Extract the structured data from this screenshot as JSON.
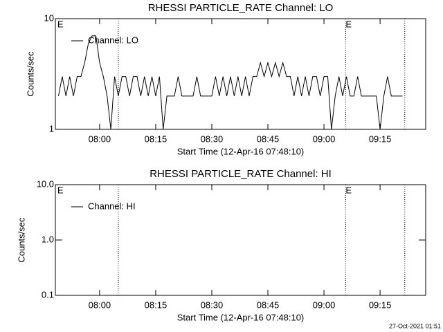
{
  "chart_data": [
    {
      "type": "line",
      "title": "RHESSI PARTICLE_RATE Channel: LO",
      "xlabel": "Start Time (12-Apr-16 07:48:10)",
      "ylabel": "Counts/sec",
      "log_y": true,
      "ylim": [
        1,
        10
      ],
      "yticks": [
        1,
        10
      ],
      "xlim": [
        468.17,
        567.2
      ],
      "xticks": [
        {
          "value": 480,
          "label": "08:00"
        },
        {
          "value": 495,
          "label": "08:15"
        },
        {
          "value": 510,
          "label": "08:30"
        },
        {
          "value": 525,
          "label": "08:45"
        },
        {
          "value": 540,
          "label": "09:00"
        },
        {
          "value": 555,
          "label": "09:15"
        }
      ],
      "vlines": [
        485.0,
        545.8,
        561.6
      ],
      "annotations": [
        {
          "text": "E",
          "x": 468.7
        },
        {
          "text": "E",
          "x": 545.8
        }
      ],
      "legend": "upper left",
      "x": [
        469,
        470,
        471,
        472,
        473,
        474,
        475,
        476,
        477,
        478,
        479,
        480,
        481,
        482,
        483,
        484,
        485,
        486,
        487,
        488,
        489,
        490,
        491,
        492,
        493,
        494,
        495,
        496,
        497,
        498,
        499,
        500,
        501,
        502,
        503,
        504,
        505,
        506,
        507,
        508,
        509,
        510,
        511,
        512,
        513,
        514,
        515,
        516,
        517,
        518,
        519,
        520,
        521,
        522,
        523,
        524,
        525,
        526,
        527,
        528,
        529,
        530,
        531,
        532,
        533,
        534,
        535,
        536,
        537,
        538,
        539,
        540,
        541,
        542,
        543,
        544,
        545,
        546,
        547,
        548,
        549,
        550,
        551,
        552,
        553,
        554,
        555,
        556,
        557,
        558,
        559,
        560,
        561
      ],
      "series": [
        {
          "name": "Channel: LO",
          "color": "#000000",
          "values": [
            2,
            3,
            2,
            3,
            2,
            3,
            3,
            4,
            6,
            7,
            7,
            4,
            3,
            2,
            1,
            3,
            2,
            3,
            3,
            2,
            3,
            3,
            2,
            3,
            2,
            3,
            2,
            3,
            1,
            2,
            2,
            2,
            3,
            2,
            2,
            2,
            2,
            3,
            2,
            2,
            2,
            2,
            3,
            2,
            3,
            2,
            3,
            2,
            3,
            2,
            3,
            2,
            3,
            3,
            4,
            3,
            4,
            3,
            4,
            3,
            4,
            3,
            3,
            2,
            3,
            2,
            3,
            2,
            3,
            3,
            2,
            3,
            3,
            1,
            2,
            3,
            2,
            3,
            2,
            2,
            3,
            2,
            2,
            2,
            2,
            2,
            1,
            2,
            3,
            2,
            2,
            2,
            2
          ]
        }
      ]
    },
    {
      "type": "line",
      "title": "RHESSI PARTICLE_RATE Channel: HI",
      "xlabel": "Start Time (12-Apr-16 07:48:10)",
      "ylabel": "Counts/sec",
      "log_y": true,
      "ylim": [
        0.1,
        10
      ],
      "yticks": [
        0.1,
        {
          "value": 1,
          "label": "1.0"
        },
        {
          "value": 10,
          "label": "10.0"
        }
      ],
      "xlim": [
        468.17,
        567.2
      ],
      "xticks": [
        {
          "value": 480,
          "label": "08:00"
        },
        {
          "value": 495,
          "label": "08:15"
        },
        {
          "value": 510,
          "label": "08:30"
        },
        {
          "value": 525,
          "label": "08:45"
        },
        {
          "value": 540,
          "label": "09:00"
        },
        {
          "value": 555,
          "label": "09:15"
        }
      ],
      "vlines": [
        485.0,
        545.8,
        561.6
      ],
      "annotations": [
        {
          "text": "E",
          "x": 468.7
        },
        {
          "text": "E",
          "x": 545.8
        }
      ],
      "legend": "upper left",
      "x": [],
      "series": [
        {
          "name": "Channel: HI",
          "color": "#000000",
          "values": []
        }
      ]
    }
  ],
  "footer": "27-Oct-2021 01:51"
}
